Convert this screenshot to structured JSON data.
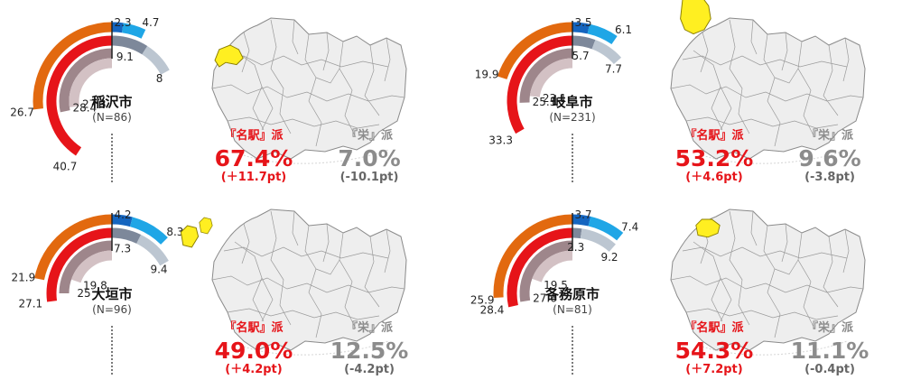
{
  "colors": {
    "orange": "#e2690f",
    "red": "#e61419",
    "taupe": "#9e868b",
    "pink": "#d3c1c4",
    "darkblue": "#1565bf",
    "lightblue": "#1fa6e6",
    "slate": "#7d889a",
    "paleslate": "#bcc6d1",
    "gray_text": "#8c8c8c",
    "highlight": "#ffef21"
  },
  "chart_data": [
    {
      "type": "radial-bar",
      "city": "稲沢市",
      "n": "(N=86)",
      "series": {
        "c1": 26.7,
        "c2": 40.7,
        "c3": 28.4,
        "c4": 27.3,
        "c5": 2.3,
        "c6": 4.7,
        "c7": 9.1,
        "c8": 8
      },
      "labels": {
        "c1": "26.7",
        "c2": "40.7",
        "c3": "28.4",
        "c4": "27.3",
        "c5": "2.3",
        "c6": "4.7",
        "c7": "9.1",
        "c8": "8"
      },
      "meieki": {
        "label": "『名駅』派",
        "value": "67.4%",
        "change": "(＋11.7pt)"
      },
      "sakae": {
        "label": "『栄』派",
        "value": "7.0%",
        "change": "(-10.1pt)"
      }
    },
    {
      "type": "radial-bar",
      "city": "岐阜市",
      "n": "(N=231)",
      "series": {
        "c1": 19.9,
        "c2": 33.3,
        "c3": 25.5,
        "c4": 23.1,
        "c5": 3.5,
        "c6": 6.1,
        "c7": 5.7,
        "c8": 7.7
      },
      "labels": {
        "c1": "19.9",
        "c2": "33.3",
        "c3": "25.5",
        "c4": "23.1",
        "c5": "3.5",
        "c6": "6.1",
        "c7": "5.7",
        "c8": "7.7"
      },
      "meieki": {
        "label": "『名駅』派",
        "value": "53.2%",
        "change": "(＋4.6pt)"
      },
      "sakae": {
        "label": "『栄』派",
        "value": "9.6%",
        "change": "(-3.8pt)"
      }
    },
    {
      "type": "radial-bar",
      "city": "大垣市",
      "n": "(N=96)",
      "series": {
        "c1": 21.9,
        "c2": 27.1,
        "c3": 25,
        "c4": 19.8,
        "c5": 4.2,
        "c6": 8.3,
        "c7": 7.3,
        "c8": 9.4
      },
      "labels": {
        "c1": "21.9",
        "c2": "27.1",
        "c3": "25",
        "c4": "19.8",
        "c5": "4.2",
        "c6": "8.3",
        "c7": "7.3",
        "c8": "9.4"
      },
      "meieki": {
        "label": "『名駅』派",
        "value": "49.0%",
        "change": "(＋4.2pt)"
      },
      "sakae": {
        "label": "『栄』派",
        "value": "12.5%",
        "change": "(-4.2pt)"
      }
    },
    {
      "type": "radial-bar",
      "city": "各務原市",
      "n": "(N=81)",
      "series": {
        "c1": 25.9,
        "c2": 28.4,
        "c3": 27.6,
        "c4": 19.5,
        "c5": 3.7,
        "c6": 7.4,
        "c7": 2.3,
        "c8": 9.2
      },
      "labels": {
        "c1": "25.9",
        "c2": "28.4",
        "c3": "27.6",
        "c4": "19.5",
        "c5": "3.7",
        "c6": "7.4",
        "c7": "2.3",
        "c8": "9.2"
      },
      "meieki": {
        "label": "『名駅』派",
        "value": "54.3%",
        "change": "(＋7.2pt)"
      },
      "sakae": {
        "label": "『栄』派",
        "value": "11.1%",
        "change": "(-0.4pt)"
      }
    }
  ]
}
